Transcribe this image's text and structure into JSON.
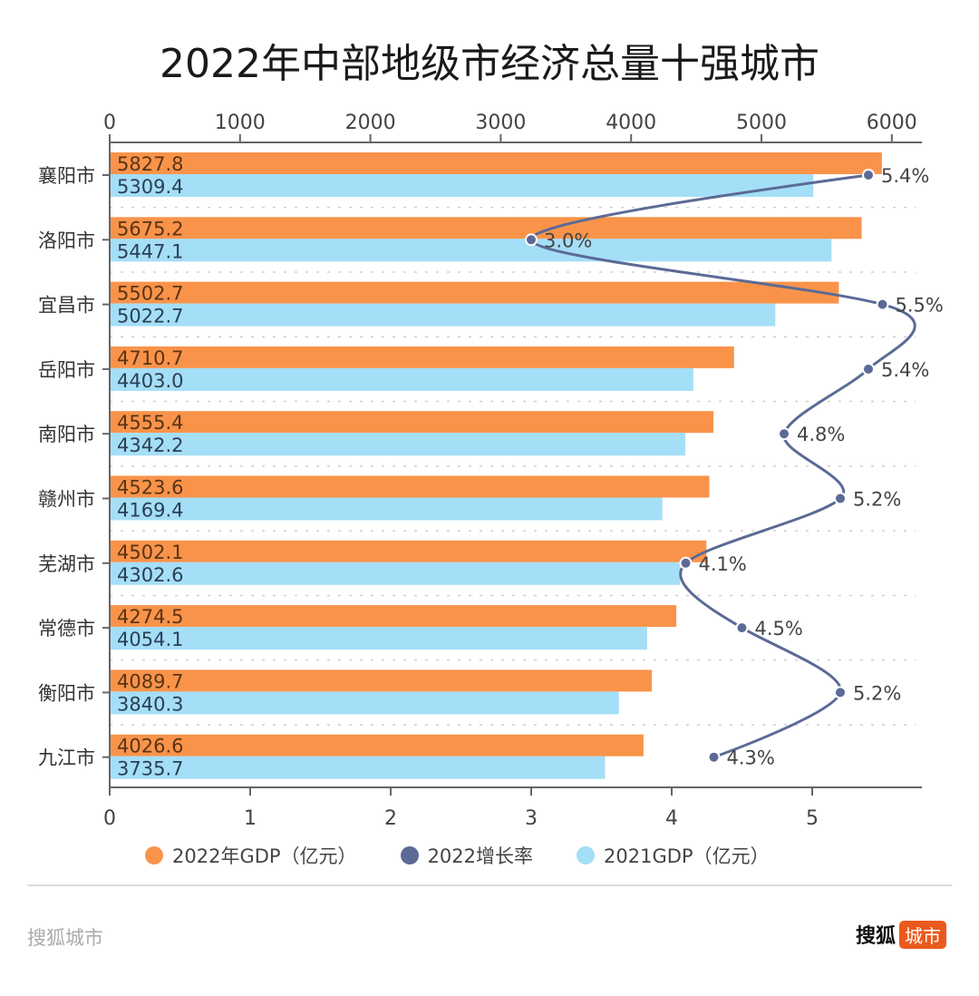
{
  "chart_data": {
    "type": "bar",
    "title": "2022年中部地级市经济总量十强城市",
    "categories": [
      "襄阳市",
      "洛阳市",
      "宜昌市",
      "岳阳市",
      "南阳市",
      "赣州市",
      "芜湖市",
      "常德市",
      "衡阳市",
      "九江市"
    ],
    "series": [
      {
        "name": "2022年GDP（亿元）",
        "axis": "top",
        "color": "#F9934A",
        "values": [
          5827.8,
          5675.2,
          5502.7,
          4710.7,
          4555.4,
          4523.6,
          4502.1,
          4274.5,
          4089.7,
          4026.6
        ],
        "labels": [
          "5827.8",
          "5675.2",
          "5502.7",
          "4710.7",
          "4555.4",
          "4523.6",
          "4502.1",
          "4274.5",
          "4089.7",
          "4026.6"
        ]
      },
      {
        "name": "2021GDP（亿元）",
        "axis": "top",
        "color": "#A4DEF7",
        "values": [
          5309.4,
          5447.1,
          5022.7,
          4403.0,
          4342.2,
          4169.4,
          4302.6,
          4054.1,
          3840.3,
          3735.7
        ],
        "labels": [
          "5309.4",
          "5447.1",
          "5022.7",
          "4403.0",
          "4342.2",
          "4169.4",
          "4302.6",
          "4054.1",
          "3840.3",
          "3735.7"
        ]
      },
      {
        "name": "2022增长率",
        "axis": "bottom",
        "type": "line",
        "color": "#5B6A96",
        "values": [
          5.4,
          3.0,
          5.5,
          5.4,
          4.8,
          5.2,
          4.1,
          4.5,
          5.2,
          4.3
        ],
        "labels": [
          "5.4%",
          "3.0%",
          "5.5%",
          "5.4%",
          "4.8%",
          "5.2%",
          "4.1%",
          "4.5%",
          "5.2%",
          "4.3%"
        ]
      }
    ],
    "top_axis": {
      "range": [
        0,
        6000
      ],
      "ticks": [
        "0",
        "1000",
        "2000",
        "3000",
        "4000",
        "5000",
        "6000"
      ]
    },
    "bottom_axis": {
      "range": [
        0,
        5.8
      ],
      "ticks": [
        "0",
        "1",
        "2",
        "3",
        "4",
        "5"
      ]
    },
    "grid": "dotted row separators",
    "legend_position": "bottom"
  },
  "legend": [
    {
      "label": "2022年GDP（亿元）",
      "color": "#F9934A"
    },
    {
      "label": "2022增长率",
      "color": "#5B6A96"
    },
    {
      "label": "2021GDP（亿元）",
      "color": "#A4DEF7"
    }
  ],
  "footer": {
    "source": "搜狐城市",
    "brand_main": "搜狐",
    "brand_badge": "城市"
  }
}
